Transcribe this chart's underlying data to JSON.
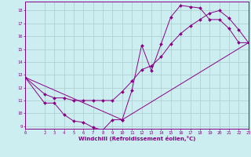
{
  "xlabel": "Windchill (Refroidissement éolien,°C)",
  "background_color": "#cdeef0",
  "line_color": "#880088",
  "grid_color": "#aacccc",
  "xlim": [
    0,
    23
  ],
  "ylim": [
    8.8,
    18.7
  ],
  "xticks": [
    0,
    2,
    3,
    4,
    5,
    6,
    7,
    8,
    9,
    10,
    11,
    12,
    13,
    14,
    15,
    16,
    17,
    18,
    19,
    20,
    21,
    22,
    23
  ],
  "yticks": [
    9,
    10,
    11,
    12,
    13,
    14,
    15,
    16,
    17,
    18
  ],
  "line1_x": [
    0,
    2,
    3,
    4,
    5,
    6,
    7,
    8,
    9,
    10,
    11,
    12,
    13,
    14,
    15,
    16,
    17,
    18,
    19,
    20,
    21,
    22,
    23
  ],
  "line1_y": [
    12.8,
    10.8,
    10.8,
    9.9,
    9.4,
    9.3,
    8.9,
    8.7,
    9.5,
    9.5,
    11.8,
    15.3,
    13.3,
    15.4,
    17.5,
    18.4,
    18.3,
    18.2,
    17.3,
    17.3,
    16.6,
    15.5,
    15.5
  ],
  "line2_x": [
    0,
    2,
    3,
    4,
    5,
    6,
    7,
    8,
    9,
    10,
    11,
    12,
    13,
    14,
    15,
    16,
    17,
    18,
    19,
    20,
    21,
    22,
    23
  ],
  "line2_y": [
    12.8,
    11.5,
    11.2,
    11.2,
    11.0,
    11.0,
    11.0,
    11.0,
    11.0,
    11.7,
    12.5,
    13.4,
    13.7,
    14.4,
    15.4,
    16.2,
    16.8,
    17.3,
    17.8,
    18.0,
    17.4,
    16.5,
    15.5
  ],
  "line3_x": [
    0,
    10,
    23
  ],
  "line3_y": [
    12.8,
    9.5,
    15.5
  ],
  "markersize": 2.0,
  "lw": 0.7
}
